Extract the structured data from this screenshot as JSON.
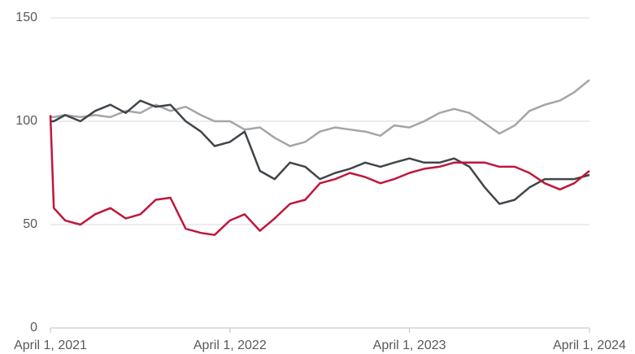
{
  "chart_data": {
    "type": "line",
    "x": [
      "2021-04-01",
      "2021-04-08",
      "2021-05-01",
      "2021-06-01",
      "2021-07-01",
      "2021-08-01",
      "2021-09-01",
      "2021-10-01",
      "2021-11-01",
      "2021-12-01",
      "2022-01-01",
      "2022-02-01",
      "2022-03-01",
      "2022-04-01",
      "2022-05-01",
      "2022-06-01",
      "2022-07-01",
      "2022-08-01",
      "2022-09-01",
      "2022-10-01",
      "2022-11-01",
      "2022-12-01",
      "2023-01-01",
      "2023-02-01",
      "2023-03-01",
      "2023-04-01",
      "2023-05-01",
      "2023-06-01",
      "2023-07-01",
      "2023-08-01",
      "2023-09-01",
      "2023-10-01",
      "2023-11-01",
      "2023-12-01",
      "2024-01-01",
      "2024-02-01",
      "2024-03-01",
      "2024-04-01"
    ],
    "series": [
      {
        "color": "#a5a5a5",
        "values": [
          102,
          102,
          103,
          102,
          103,
          102,
          105,
          104,
          108,
          105,
          107,
          103,
          100,
          100,
          96,
          97,
          92,
          88,
          90,
          95,
          97,
          96,
          95,
          93,
          98,
          97,
          100,
          104,
          106,
          104,
          99,
          94,
          98,
          105,
          108,
          110,
          114,
          120
        ]
      },
      {
        "color": "#3f454a",
        "values": [
          100,
          100,
          103,
          100,
          105,
          108,
          104,
          110,
          107,
          108,
          100,
          95,
          88,
          90,
          95,
          76,
          72,
          80,
          78,
          72,
          75,
          77,
          80,
          78,
          80,
          82,
          80,
          80,
          82,
          78,
          68,
          60,
          62,
          68,
          72,
          72,
          72,
          74
        ]
      },
      {
        "color": "#c0163b",
        "values": [
          103,
          58,
          52,
          50,
          55,
          58,
          53,
          55,
          62,
          63,
          48,
          46,
          45,
          52,
          55,
          47,
          53,
          60,
          62,
          70,
          72,
          75,
          73,
          70,
          72,
          75,
          77,
          78,
          80,
          80,
          80,
          78,
          78,
          75,
          70,
          67,
          70,
          76
        ]
      }
    ],
    "xlim": [
      "2021-04-01",
      "2024-04-01"
    ],
    "xticks": [
      {
        "value": "2021-04-01",
        "label": "April 1, 2021"
      },
      {
        "value": "2022-04-01",
        "label": "April 1, 2022"
      },
      {
        "value": "2023-04-01",
        "label": "April 1, 2023"
      },
      {
        "value": "2024-04-01",
        "label": "April 1, 2024"
      }
    ],
    "ylim": [
      0,
      150
    ],
    "yticks": [
      0,
      50,
      100,
      150
    ],
    "grid": true
  }
}
